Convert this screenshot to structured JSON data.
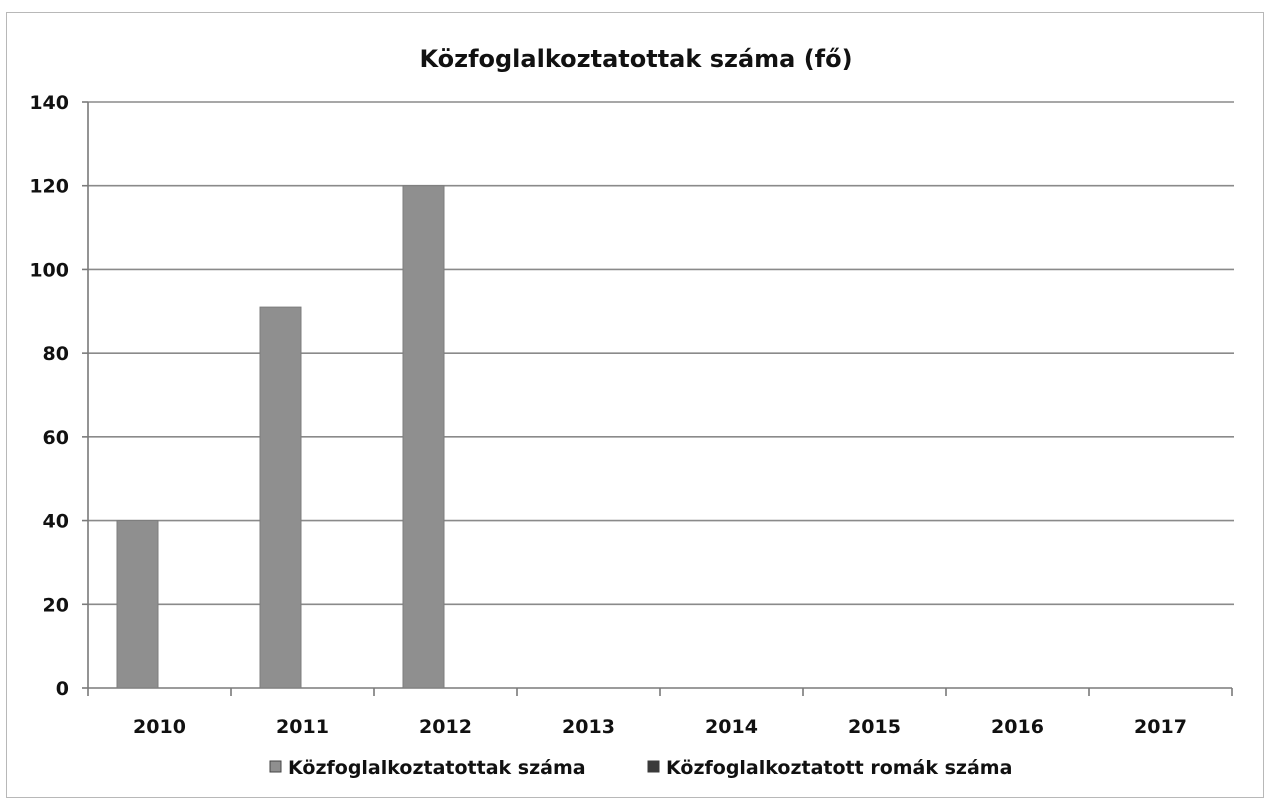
{
  "chart_data": {
    "type": "bar",
    "title": "Közfoglalkoztatottak száma (fő)",
    "xlabel": "",
    "ylabel": "",
    "categories": [
      "2010",
      "2011",
      "2012",
      "2013",
      "2014",
      "2015",
      "2016",
      "2017"
    ],
    "series": [
      {
        "name": "Közfoglalkoztatottak száma",
        "color": "#8f8f8f",
        "values": [
          40,
          91,
          120,
          null,
          null,
          null,
          null,
          null
        ]
      },
      {
        "name": "Közfoglalkoztatott romák száma",
        "color": "#3a3a3a",
        "values": [
          null,
          null,
          null,
          null,
          null,
          null,
          null,
          null
        ]
      }
    ],
    "ylim": [
      0,
      140
    ],
    "yticks": [
      "0",
      "20",
      "40",
      "60",
      "80",
      "100",
      "120",
      "140"
    ],
    "grid": true,
    "legend_position": "bottom"
  }
}
